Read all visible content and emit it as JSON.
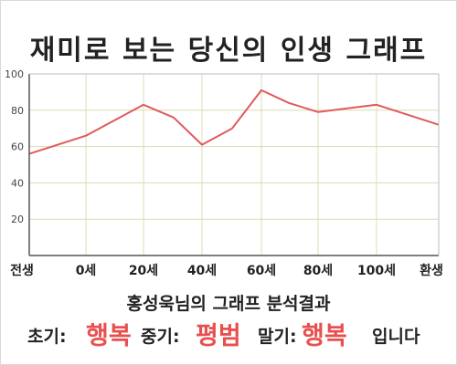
{
  "title": "재미로 보는 당신의 인생 그래프",
  "caption": "홍성욱님의 그래프 분석결과",
  "result": {
    "early_label": "초기:",
    "early_value": "행복",
    "mid_label": "중기:",
    "mid_value": "평범",
    "late_label": "말기:",
    "late_value": "행복",
    "suffix": "입니다"
  },
  "colors": {
    "line": "#e05a5a",
    "fill": "#ffffc4",
    "grid": "#dcdcb4",
    "accent_text": "#e8504f"
  },
  "chart_data": {
    "type": "area",
    "title": "재미로 보는 당신의 인생 그래프",
    "xlabel": "",
    "ylabel": "",
    "x_ticks": [
      "전생",
      "0세",
      "20세",
      "40세",
      "60세",
      "80세",
      "100세",
      "환생"
    ],
    "y_ticks": [
      "20",
      "40",
      "60",
      "80",
      "100"
    ],
    "ylim": [
      0,
      100
    ],
    "grid": true,
    "series": [
      {
        "points": [
          {
            "x": "전생",
            "y": 56
          },
          {
            "x": "0세",
            "y": 66
          },
          {
            "x": "20세",
            "y": 83
          },
          {
            "x": "30세",
            "y": 76
          },
          {
            "x": "40세",
            "y": 61
          },
          {
            "x": "50세",
            "y": 70
          },
          {
            "x": "60세",
            "y": 91
          },
          {
            "x": "70세",
            "y": 84
          },
          {
            "x": "80세",
            "y": 79
          },
          {
            "x": "100세",
            "y": 83
          },
          {
            "x": "환생",
            "y": 72
          }
        ]
      }
    ]
  }
}
